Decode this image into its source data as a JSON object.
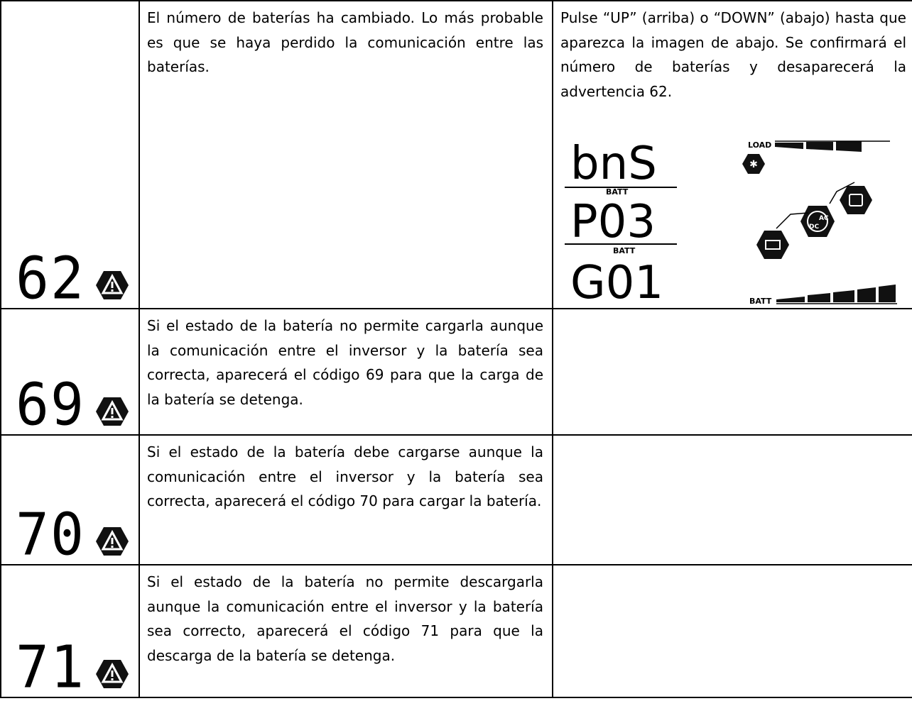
{
  "table": {
    "rows": [
      {
        "code": "62",
        "description": "El número de baterías ha cambiado. Lo más probable es que se haya perdido la comunicación entre las baterías.",
        "action": "Pulse “UP” (arriba) o “DOWN” (abajo) hasta que aparezca la imagen de abajo. Se confirmará el número de baterías y desaparecerá la advertencia 62."
      },
      {
        "code": "69",
        "description": "Si el estado de la batería no permite cargarla aunque la comunicación entre el inversor y la batería sea correcta, aparecerá el código 69 para que la carga de la batería se detenga."
      },
      {
        "code": "70",
        "description": "Si el estado de la batería debe cargarse aunque la comunicación entre el inversor y la batería sea correcta, aparecerá el código 70 para cargar la batería."
      },
      {
        "code": "71",
        "description": "Si el estado de la batería no permite descargarla aunque la comunicación entre el inversor y la batería sea correcto, aparecerá el código 71 para que la descarga de la batería se detenga."
      }
    ]
  },
  "lcd": {
    "lines": [
      "bnS",
      "P03",
      "G01"
    ],
    "line_labels": [
      "BATT",
      "BATT"
    ],
    "load_label": "LOAD",
    "batt_label": "BATT",
    "dc_label": "DC",
    "ac_label": "AC"
  }
}
